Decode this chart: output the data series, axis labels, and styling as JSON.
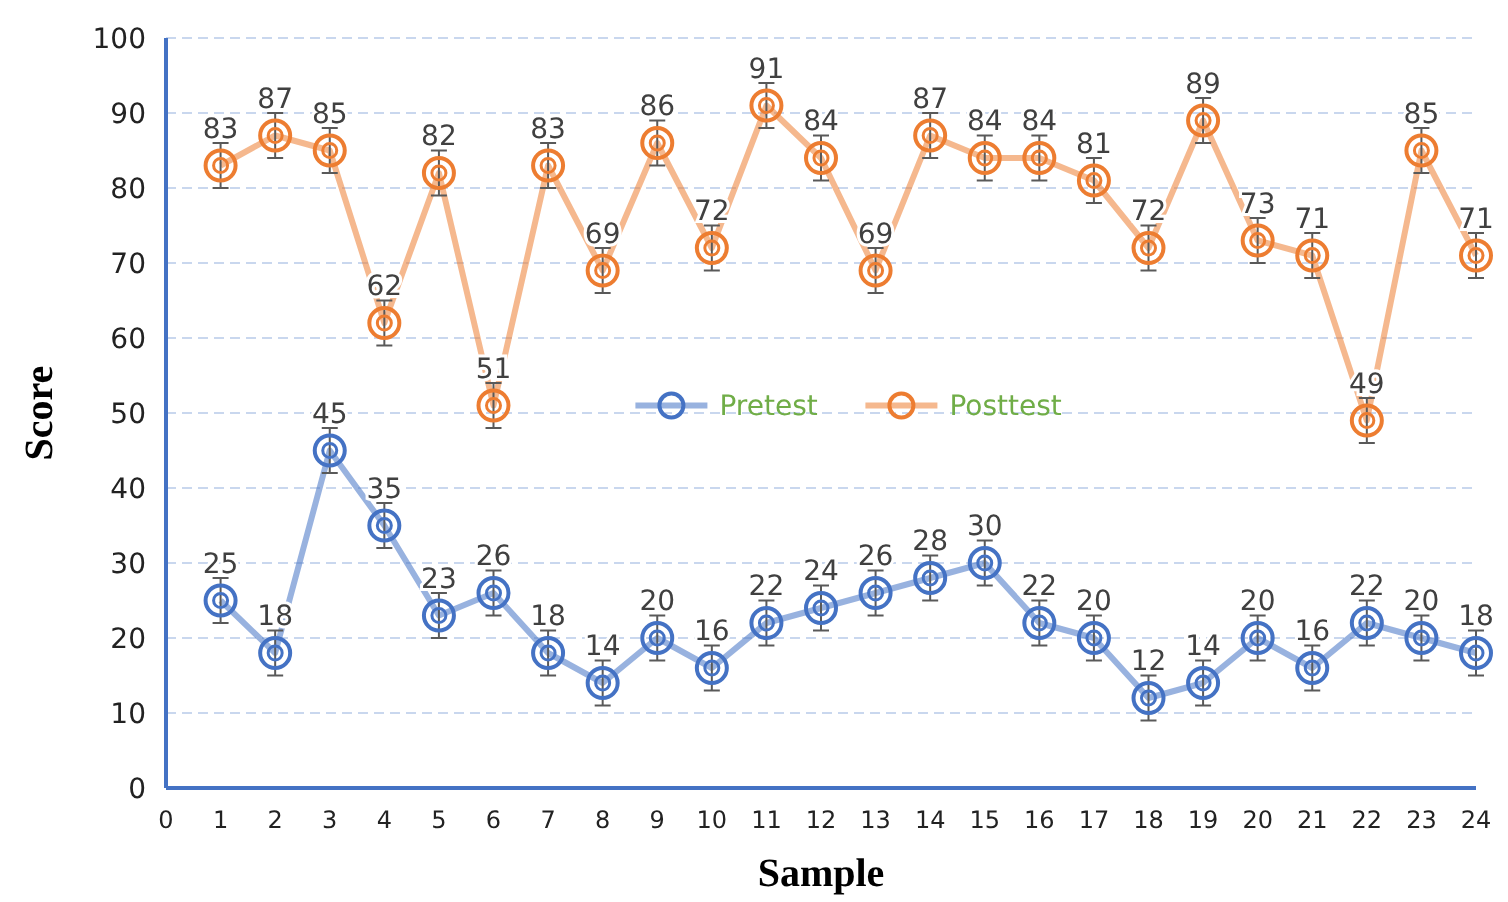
{
  "chart_data": {
    "type": "line",
    "xlabel": "Sample",
    "ylabel": "Score",
    "x": [
      1,
      2,
      3,
      4,
      5,
      6,
      7,
      8,
      9,
      10,
      11,
      12,
      13,
      14,
      15,
      16,
      17,
      18,
      19,
      20,
      21,
      22,
      23,
      24
    ],
    "xlim": [
      0,
      24
    ],
    "xticks": [
      0,
      1,
      2,
      3,
      4,
      5,
      6,
      7,
      8,
      9,
      10,
      11,
      12,
      13,
      14,
      15,
      16,
      17,
      18,
      19,
      20,
      21,
      22,
      23,
      24
    ],
    "ylim": [
      0,
      100
    ],
    "yticks": [
      0,
      10,
      20,
      30,
      40,
      50,
      60,
      70,
      80,
      90,
      100
    ],
    "grid": "y",
    "legend": "center",
    "marker": "circle",
    "line_style": "solid",
    "data_labels": true,
    "series": [
      {
        "name": "Pretest",
        "color": "#4472c4",
        "values": [
          25,
          18,
          45,
          35,
          23,
          26,
          18,
          14,
          20,
          16,
          22,
          24,
          26,
          28,
          30,
          22,
          20,
          12,
          14,
          20,
          16,
          22,
          20,
          18
        ],
        "errors": [
          3,
          3,
          3,
          3,
          3,
          3,
          3,
          3,
          3,
          3,
          3,
          3,
          3,
          3,
          3,
          3,
          3,
          3,
          3,
          3,
          3,
          3,
          3,
          3
        ]
      },
      {
        "name": "Posttest",
        "color": "#ed7d31",
        "values": [
          83,
          87,
          85,
          62,
          82,
          51,
          83,
          69,
          86,
          72,
          91,
          84,
          69,
          87,
          84,
          84,
          81,
          72,
          89,
          73,
          71,
          49,
          85,
          71
        ],
        "errors": [
          3,
          3,
          3,
          3,
          3,
          3,
          3,
          3,
          3,
          3,
          3,
          3,
          3,
          3,
          3,
          3,
          3,
          3,
          3,
          3,
          3,
          3,
          3,
          3
        ]
      }
    ]
  }
}
